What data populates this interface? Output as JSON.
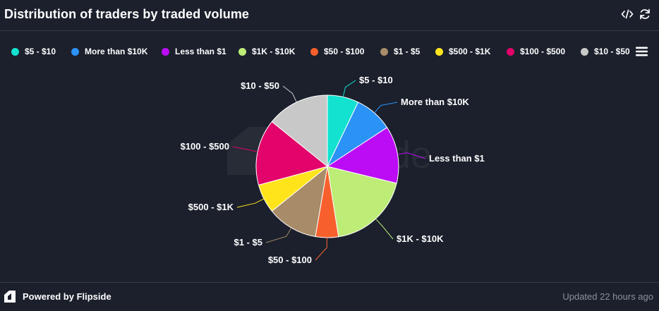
{
  "header": {
    "title": "Distribution of traders by traded volume",
    "embed_icon": "code-icon",
    "refresh_icon": "refresh-icon"
  },
  "legend": {
    "items": [
      {
        "label": "$5 - $10",
        "color": "#12e2cf"
      },
      {
        "label": "More than $10K",
        "color": "#2b92f6"
      },
      {
        "label": "Less than $1",
        "color": "#bc0cf5"
      },
      {
        "label": "$1K - $10K",
        "color": "#bdec77"
      },
      {
        "label": "$50 - $100",
        "color": "#f7602d"
      },
      {
        "label": "$1 - $5",
        "color": "#a88b68"
      },
      {
        "label": "$500 - $1K",
        "color": "#ffe41c"
      },
      {
        "label": "$100 - $500",
        "color": "#e2046a"
      },
      {
        "label": "$10 - $50",
        "color": "#c8c8c8"
      }
    ],
    "menu_icon": "hamburger-menu-icon"
  },
  "chart_data": {
    "type": "pie",
    "title": "Distribution of traders by traded volume",
    "legend_placement": "top",
    "slices": [
      {
        "label": "$5 - $10",
        "value": 7.1,
        "color": "#12e2cf"
      },
      {
        "label": "More than $10K",
        "value": 8.7,
        "color": "#2b92f6"
      },
      {
        "label": "Less than $1",
        "value": 13.0,
        "color": "#bc0cf5"
      },
      {
        "label": "$1K - $10K",
        "value": 18.7,
        "color": "#bdec77"
      },
      {
        "label": "$50 - $100",
        "value": 5.2,
        "color": "#f7602d"
      },
      {
        "label": "$1 - $5",
        "value": 11.5,
        "color": "#a88b68"
      },
      {
        "label": "$500 - $1K",
        "value": 6.6,
        "color": "#ffe41c"
      },
      {
        "label": "$100 - $500",
        "value": 15.0,
        "color": "#e2046a"
      },
      {
        "label": "$10 - $50",
        "value": 14.2,
        "color": "#c8c8c8"
      }
    ]
  },
  "footer": {
    "brand": "Powered by Flipside",
    "brand_icon": "flipside-logo-icon",
    "updated": "Updated 22 hours ago"
  }
}
